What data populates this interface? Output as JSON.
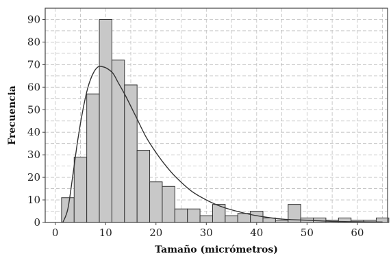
{
  "chart_data": {
    "type": "bar",
    "xlabel": "Tamaño (micrómetros)",
    "ylabel": "Frecuencia",
    "xlim": [
      -2,
      66
    ],
    "ylim": [
      0,
      95
    ],
    "xticks": [
      0,
      10,
      20,
      30,
      40,
      50,
      60
    ],
    "yticks": [
      0,
      10,
      20,
      30,
      40,
      50,
      60,
      70,
      80,
      90
    ],
    "grid": true,
    "bin_width": 2.5,
    "bins_start": [
      1.25,
      3.75,
      6.25,
      8.75,
      11.25,
      13.75,
      16.25,
      18.75,
      21.25,
      23.75,
      26.25,
      28.75,
      31.25,
      33.75,
      36.25,
      38.75,
      41.25,
      43.75,
      46.25,
      48.75,
      51.25,
      53.75,
      56.25,
      58.75,
      61.25,
      63.75
    ],
    "values": [
      11,
      29,
      57,
      90,
      72,
      61,
      32,
      18,
      16,
      6,
      6,
      3,
      8,
      3,
      4,
      5,
      2,
      1,
      8,
      2,
      2,
      1,
      2,
      1,
      1,
      2
    ],
    "fit_curve": {
      "x": [
        1.5,
        2.5,
        3.5,
        4.5,
        5.5,
        6.5,
        7.5,
        8.5,
        9.5,
        10.5,
        11.5,
        12.5,
        14,
        16,
        18,
        20,
        22,
        24,
        27,
        30,
        33,
        36,
        40,
        45,
        50,
        55,
        60,
        65
      ],
      "y": [
        0,
        6,
        21,
        37,
        50,
        60,
        66,
        69,
        69,
        68,
        66,
        62,
        56,
        47,
        38,
        31,
        25,
        20,
        14,
        10,
        7,
        5,
        3,
        1.5,
        1,
        0.5,
        0.3,
        0.2
      ]
    },
    "colors": {
      "bar_fill": "#c8c8c8",
      "bar_stroke": "#333333",
      "curve": "#333333",
      "grid": "#bdbdbd"
    }
  }
}
